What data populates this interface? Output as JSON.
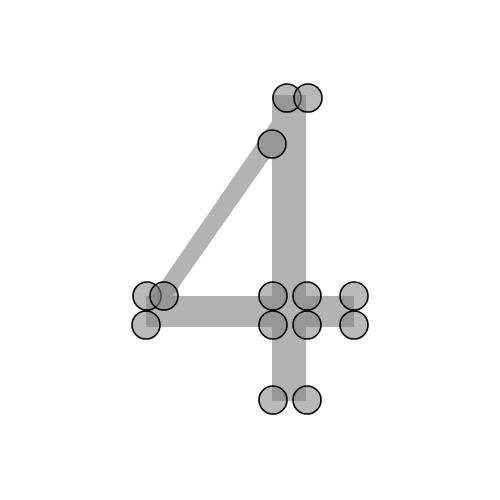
{
  "figure": {
    "glyph": "4",
    "colors": {
      "background": "#ffffff",
      "stroke": "#b3b3b3",
      "point_fill": "#808080",
      "point_outline": "#000000"
    }
  }
}
